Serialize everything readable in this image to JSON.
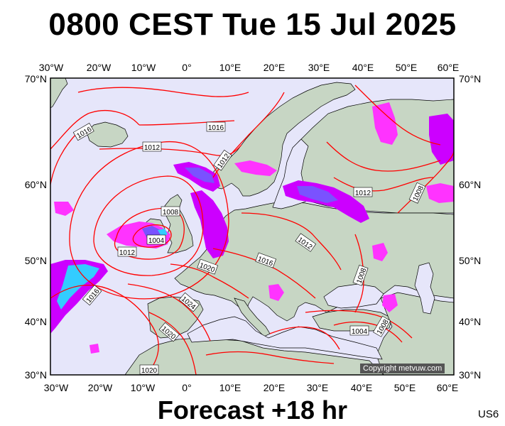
{
  "header": {
    "title": "0800 CEST Tue 15 Jul 2025"
  },
  "footer": {
    "forecast": "Forecast +18 hr",
    "code": "US6"
  },
  "copyright": "Copyright metvuw.com",
  "axes": {
    "lon_labels": [
      "30°W",
      "20°W",
      "10°W",
      "0°",
      "10°E",
      "20°E",
      "30°E",
      "40°E",
      "50°E",
      "60°E"
    ],
    "lat_labels": [
      "70°N",
      "60°N",
      "50°N",
      "40°N",
      "30°N"
    ]
  },
  "isobar_labels": [
    "1016",
    "1016",
    "1012",
    "1012",
    "1012",
    "1008",
    "1008",
    "1004",
    "1012",
    "1016",
    "1020",
    "1016",
    "1024",
    "1020",
    "1012",
    "1008",
    "1004",
    "1008",
    "1020"
  ],
  "colors": {
    "sea": "#e6e6fa",
    "land": "#c7d6c4",
    "isobar": "#ff0000",
    "precip_light": "#ff33ff",
    "precip_medium": "#cc00ff",
    "precip_heavy": "#7a52ff",
    "precip_extreme": "#33ccff"
  }
}
